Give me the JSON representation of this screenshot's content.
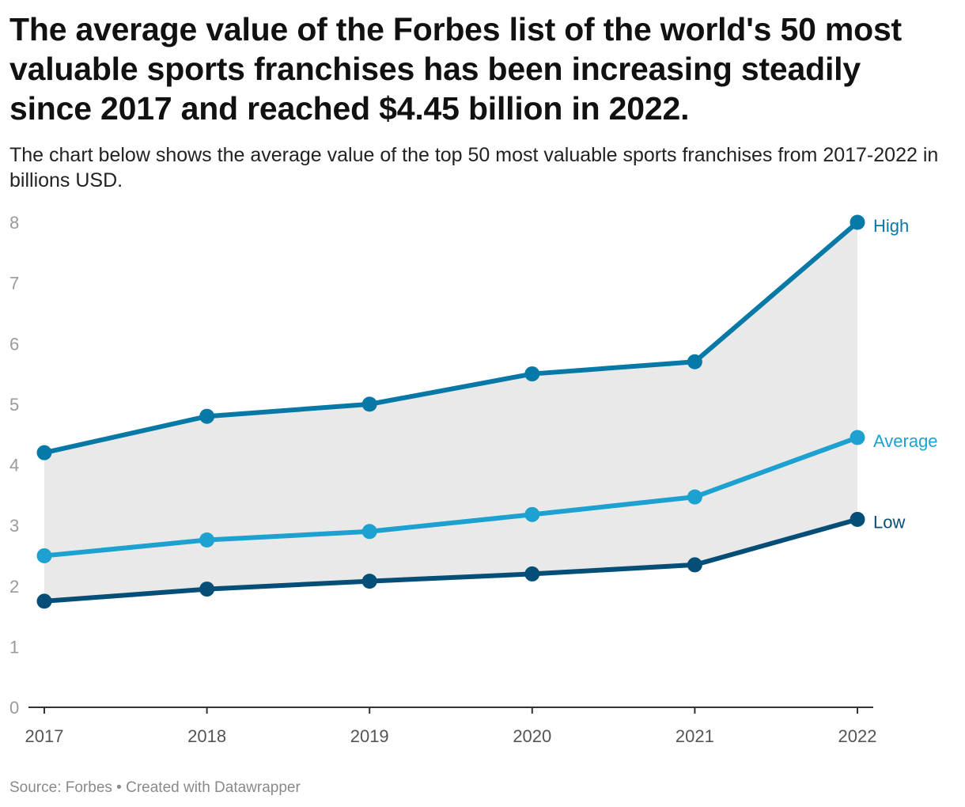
{
  "header": {
    "title": "The average value of the Forbes list of the world's 50 most valuable sports franchises has been increasing steadily since 2017 and reached $4.45 billion in 2022.",
    "subtitle": "The chart below shows the average value of the top 50 most valuable sports franchises from 2017-2022 in billions USD."
  },
  "footer": {
    "source": "Source: Forbes • Created with Datawrapper"
  },
  "chart_data": {
    "type": "line",
    "title": "The average value of the Forbes list of the world's 50 most valuable sports franchises has been increasing steadily since 2017 and reached $4.45 billion in 2022.",
    "subtitle": "The chart below shows the average value of the top 50 most valuable sports franchises from 2017-2022 in billions USD.",
    "xlabel": "",
    "ylabel": "",
    "x": [
      "2017",
      "2018",
      "2019",
      "2020",
      "2021",
      "2022"
    ],
    "yticks": [
      0,
      1,
      2,
      3,
      4,
      5,
      6,
      7,
      8
    ],
    "ylim": [
      0,
      8
    ],
    "grid": false,
    "legend": "direct labels at line ends",
    "shaded_range": {
      "between": [
        "High",
        "Low"
      ],
      "color": "#e9e9e9"
    },
    "series": [
      {
        "name": "High",
        "color": "#0779a6",
        "values": [
          4.2,
          4.8,
          5.0,
          5.5,
          5.7,
          8.0
        ]
      },
      {
        "name": "Average",
        "color": "#1da1d0",
        "values": [
          2.5,
          2.76,
          2.9,
          3.18,
          3.47,
          4.45
        ]
      },
      {
        "name": "Low",
        "color": "#044e77",
        "values": [
          1.75,
          1.95,
          2.08,
          2.2,
          2.35,
          3.1
        ]
      }
    ]
  }
}
